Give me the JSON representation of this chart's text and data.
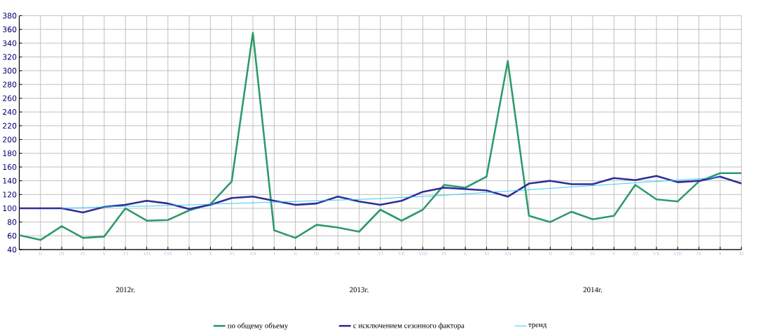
{
  "chart_data": {
    "type": "line",
    "categories": [
      "I",
      "II",
      "III",
      "IV",
      "V",
      "VI",
      "VII",
      "VIII",
      "IX",
      "X",
      "XI",
      "XII",
      "I",
      "II",
      "III",
      "IV",
      "V",
      "VI",
      "VII",
      "VIII",
      "IX",
      "X",
      "XI",
      "XII",
      "I",
      "II",
      "III",
      "IV",
      "V",
      "VI",
      "VII",
      "VIII",
      "IX",
      "X",
      "XI"
    ],
    "series": [
      {
        "name": "по общему объему",
        "color": "#2e9a6a",
        "values": [
          61,
          54,
          74,
          57,
          59,
          100,
          82,
          83,
          97,
          106,
          139,
          355,
          68,
          57,
          76,
          72,
          66,
          98,
          82,
          98,
          134,
          130,
          146,
          314,
          89,
          80,
          95,
          84,
          89,
          134,
          113,
          110,
          139,
          151,
          151
        ]
      },
      {
        "name": "с исключением сезонного фактора",
        "color": "#2e2e99",
        "values": [
          100,
          100,
          100,
          94,
          102,
          105,
          111,
          107,
          99,
          105,
          115,
          117,
          111,
          105,
          107,
          117,
          110,
          105,
          111,
          124,
          130,
          128,
          126,
          117,
          136,
          140,
          135,
          135,
          144,
          141,
          147,
          138,
          140,
          146,
          136
        ]
      },
      {
        "name": "тренд",
        "color": "#1ec8f0",
        "values": [
          null,
          null,
          100,
          101,
          102,
          103,
          103,
          104,
          105,
          106,
          107,
          108,
          109,
          110,
          111,
          112,
          113,
          114,
          116,
          117,
          119,
          121,
          123,
          125,
          127,
          129,
          131,
          133,
          135,
          137,
          139,
          141,
          143,
          145,
          null
        ]
      }
    ],
    "ylim": [
      40,
      380
    ],
    "yticks": [
      40,
      60,
      80,
      100,
      120,
      140,
      160,
      180,
      200,
      220,
      240,
      260,
      280,
      300,
      320,
      340,
      360,
      380
    ],
    "grid": true,
    "legend": "bottom",
    "annotations": [
      "2012г.",
      "2013г.",
      "2014г."
    ]
  }
}
